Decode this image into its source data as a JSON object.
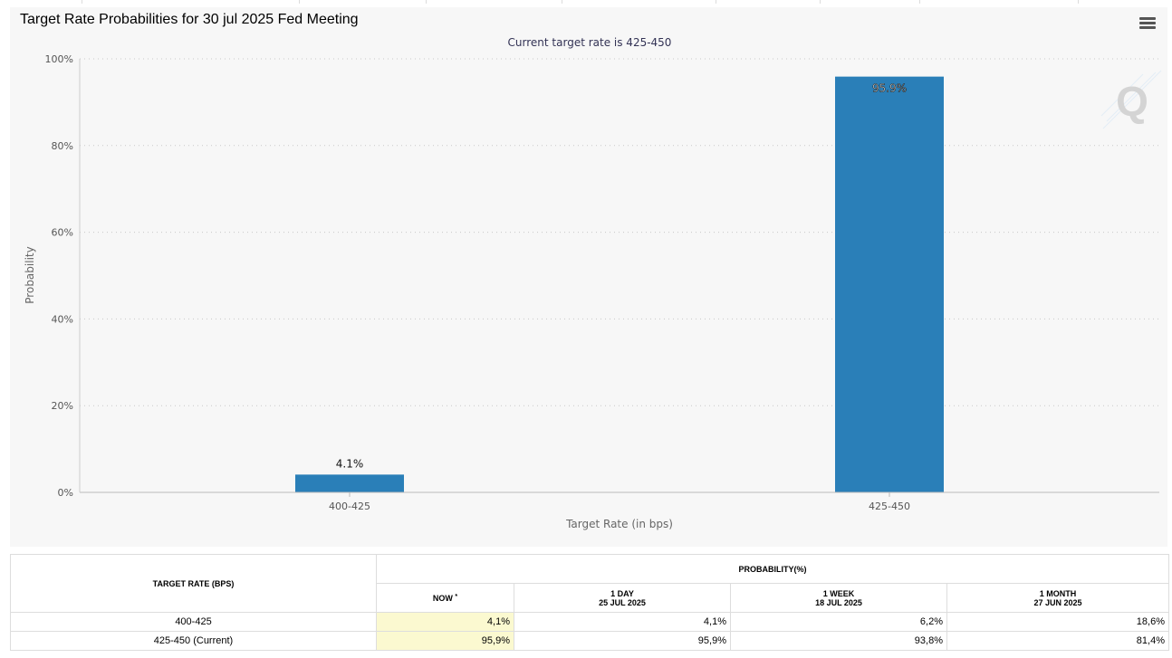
{
  "title": "Target Rate Probabilities for 30 jul 2025 Fed Meeting",
  "menu_icon": "hamburger-menu-icon",
  "watermark": "Q",
  "chart_data": {
    "type": "bar",
    "subtitle": "Current target rate is 425-450",
    "categories": [
      "400-425",
      "425-450"
    ],
    "values": [
      4.1,
      95.9
    ],
    "data_labels": [
      "4.1%",
      "95.9%"
    ],
    "xlabel": "Target Rate (in bps)",
    "ylabel": "Probability",
    "ylim": [
      0,
      100
    ],
    "yticks": [
      0,
      20,
      40,
      60,
      80,
      100
    ],
    "ytick_labels": [
      "0%",
      "20%",
      "40%",
      "60%",
      "80%",
      "100%"
    ],
    "grid": true,
    "bar_color": "#2a7fb8"
  },
  "table": {
    "rate_header": "TARGET RATE (BPS)",
    "prob_header": "PROBABILITY(%)",
    "now_label": "NOW",
    "now_marker": "*",
    "columns": [
      {
        "label": "1 DAY",
        "date": "25 JUL 2025"
      },
      {
        "label": "1 WEEK",
        "date": "18 JUL 2025"
      },
      {
        "label": "1 MONTH",
        "date": "27 JUN 2025"
      }
    ],
    "rows": [
      {
        "rate": "400-425",
        "now": "4,1%",
        "day": "4,1%",
        "week": "6,2%",
        "month": "18,6%"
      },
      {
        "rate": "425-450 (Current)",
        "now": "95,9%",
        "day": "95,9%",
        "week": "93,8%",
        "month": "81,4%"
      }
    ]
  }
}
